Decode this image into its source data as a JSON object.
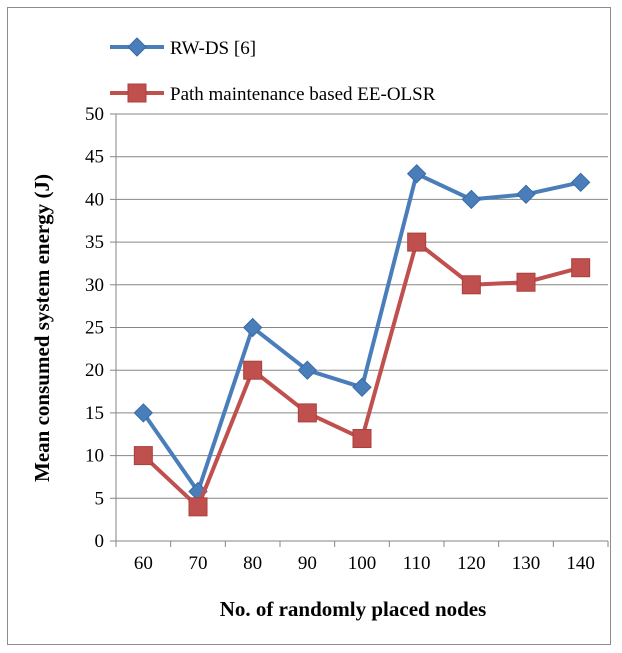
{
  "chart_data": {
    "type": "line",
    "title": "",
    "xlabel": "No. of randomly placed nodes",
    "ylabel": "Mean consumed system energy (J)",
    "categories": [
      "60",
      "70",
      "80",
      "90",
      "100",
      "110",
      "120",
      "130",
      "140"
    ],
    "ylim": [
      0,
      50
    ],
    "yticks": [
      0,
      5,
      10,
      15,
      20,
      25,
      30,
      35,
      40,
      45,
      50
    ],
    "grid": "horizontal",
    "legend_position": "top-left",
    "series": [
      {
        "name": "RW-DS [6]",
        "color": "#4a7ebb",
        "marker": "diamond",
        "values": [
          15,
          5.8,
          25,
          20,
          18,
          43,
          40,
          40.6,
          42
        ]
      },
      {
        "name": "Path maintenance based EE-OLSR",
        "color": "#c0504d",
        "marker": "square",
        "values": [
          10,
          4,
          20,
          15,
          12,
          35,
          30,
          30.3,
          32
        ]
      }
    ]
  }
}
